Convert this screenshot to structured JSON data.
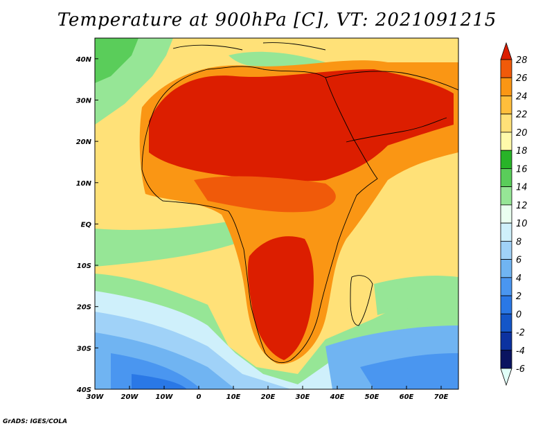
{
  "title": "Temperature at 900hPa [C], VT: 2021091215",
  "credit": "GrADS: IGES/COLA",
  "map": {
    "lon_range": [
      -30,
      75
    ],
    "lat_range": [
      -40,
      45
    ],
    "lat_labels": [
      "40N",
      "30N",
      "20N",
      "10N",
      "EQ",
      "10S",
      "20S",
      "30S",
      "40S"
    ],
    "lon_labels": [
      "30W",
      "20W",
      "10W",
      "0",
      "10E",
      "20E",
      "30E",
      "40E",
      "50E",
      "60E",
      "70E"
    ]
  },
  "colorbar": {
    "units": "C",
    "ticks": [
      "28",
      "26",
      "24",
      "22",
      "20",
      "18",
      "16",
      "14",
      "12",
      "10",
      "8",
      "6",
      "4",
      "2",
      "0",
      "-2",
      "-4",
      "-6"
    ],
    "colors": [
      "#e0fff8",
      "#0a1460",
      "#0c32a0",
      "#1456c8",
      "#2a78e6",
      "#4a96f0",
      "#70b4f2",
      "#a0d2f8",
      "#cff0fb",
      "#eafff0",
      "#96e696",
      "#5acd5a",
      "#28b428",
      "#fffaaa",
      "#ffe178",
      "#ffbe3c",
      "#fa9614",
      "#f05a0a",
      "#dc1e00"
    ]
  }
}
